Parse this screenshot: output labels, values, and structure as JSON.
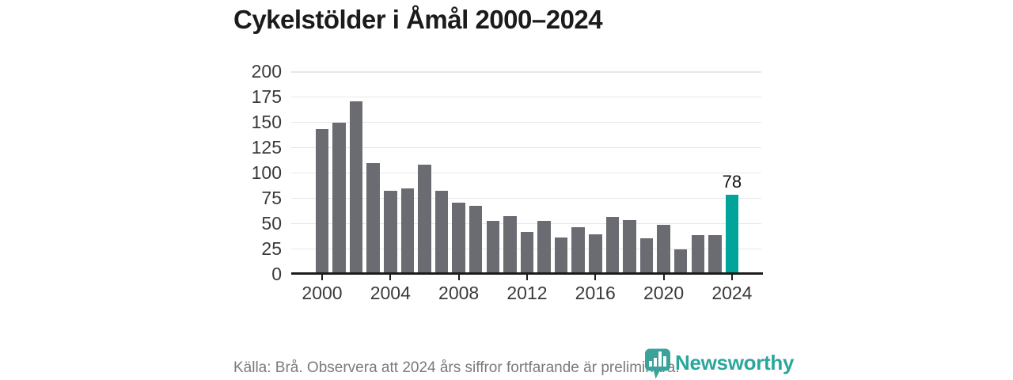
{
  "title": "Cykelstölder i Åmål 2000–2024",
  "chart_data": {
    "type": "bar",
    "title": "Cykelstölder i Åmål 2000–2024",
    "x": [
      2000,
      2001,
      2002,
      2003,
      2004,
      2005,
      2006,
      2007,
      2008,
      2009,
      2010,
      2011,
      2012,
      2013,
      2014,
      2015,
      2016,
      2017,
      2018,
      2019,
      2020,
      2021,
      2022,
      2023,
      2024
    ],
    "values": [
      143,
      149,
      170,
      109,
      82,
      84,
      108,
      82,
      70,
      67,
      52,
      57,
      41,
      52,
      36,
      46,
      39,
      56,
      53,
      35,
      48,
      24,
      38,
      38,
      78
    ],
    "highlight_index": 24,
    "highlight_label": "78",
    "yticks": [
      0,
      25,
      50,
      75,
      100,
      125,
      150,
      175,
      200
    ],
    "xticks": [
      2000,
      2004,
      2008,
      2012,
      2016,
      2020,
      2024
    ],
    "ylim": [
      0,
      200
    ],
    "grid": "horizontal",
    "legend": "none",
    "bar_color": "#6b6b72",
    "highlight_color": "#00a49a"
  },
  "footer": {
    "source": "Källa: Brå. Observera att 2024 års siffror fortfarande är preliminära.",
    "brand": "Newsworthy"
  },
  "colors": {
    "accent": "#00a49a",
    "bar": "#6b6b72",
    "brand": "#2ba69c",
    "grid": "#e7e7e7",
    "text": "#1b1b1b",
    "muted": "#7a7a7a"
  }
}
